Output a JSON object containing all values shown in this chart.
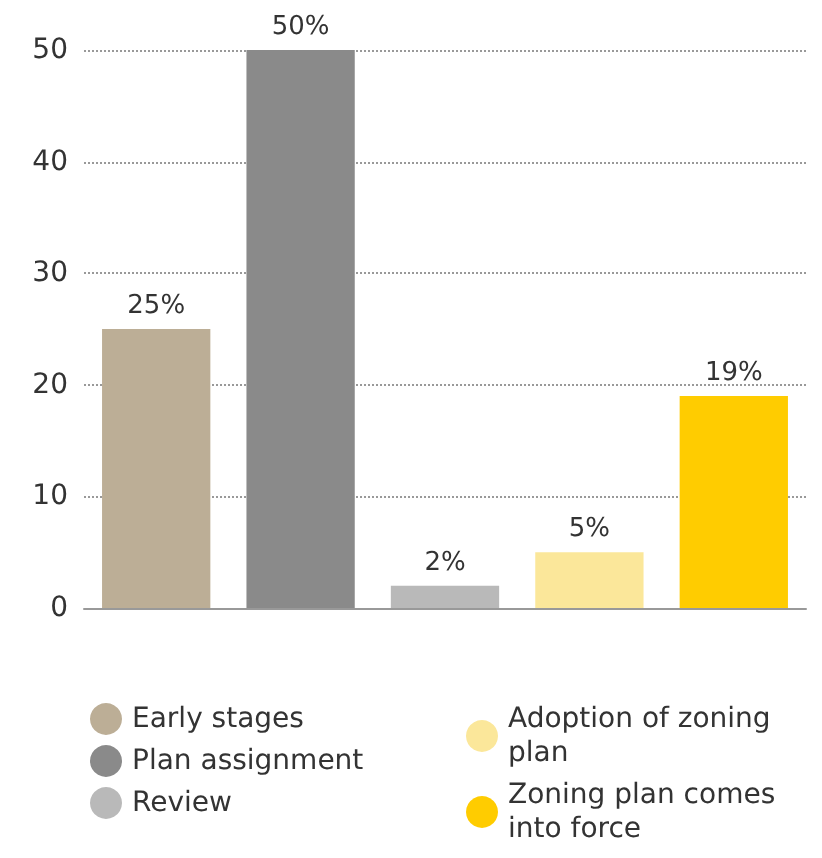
{
  "chart_data": {
    "type": "bar",
    "categories": [
      null,
      null,
      null,
      null,
      null
    ],
    "series": [
      {
        "name": "Early stages",
        "color": "#bcae96",
        "values": [
          25,
          null,
          null,
          null,
          null
        ],
        "value_labels": [
          "25%",
          null,
          null,
          null,
          null
        ]
      },
      {
        "name": "Plan assignment",
        "color": "#8a8a8a",
        "values": [
          null,
          50,
          null,
          null,
          null
        ],
        "value_labels": [
          null,
          "50%",
          null,
          null,
          null
        ]
      },
      {
        "name": "Review",
        "color": "#b9b9b9",
        "values": [
          null,
          null,
          2,
          null,
          null
        ],
        "value_labels": [
          null,
          null,
          "2%",
          null,
          null
        ]
      },
      {
        "name": "Adoption of zoning plan",
        "color": "#fbe79a",
        "values": [
          null,
          null,
          null,
          5,
          null
        ],
        "value_labels": [
          null,
          null,
          null,
          "5%",
          null
        ]
      },
      {
        "name": "Zoning plan comes into force",
        "color": "#ffcc00",
        "values": [
          null,
          null,
          null,
          null,
          19
        ],
        "value_labels": [
          null,
          null,
          null,
          null,
          "19%"
        ]
      }
    ],
    "ylim": [
      0,
      50
    ],
    "yticks": [
      0,
      10,
      20,
      30,
      40,
      50
    ],
    "grid": "y",
    "legend": "bottom"
  }
}
